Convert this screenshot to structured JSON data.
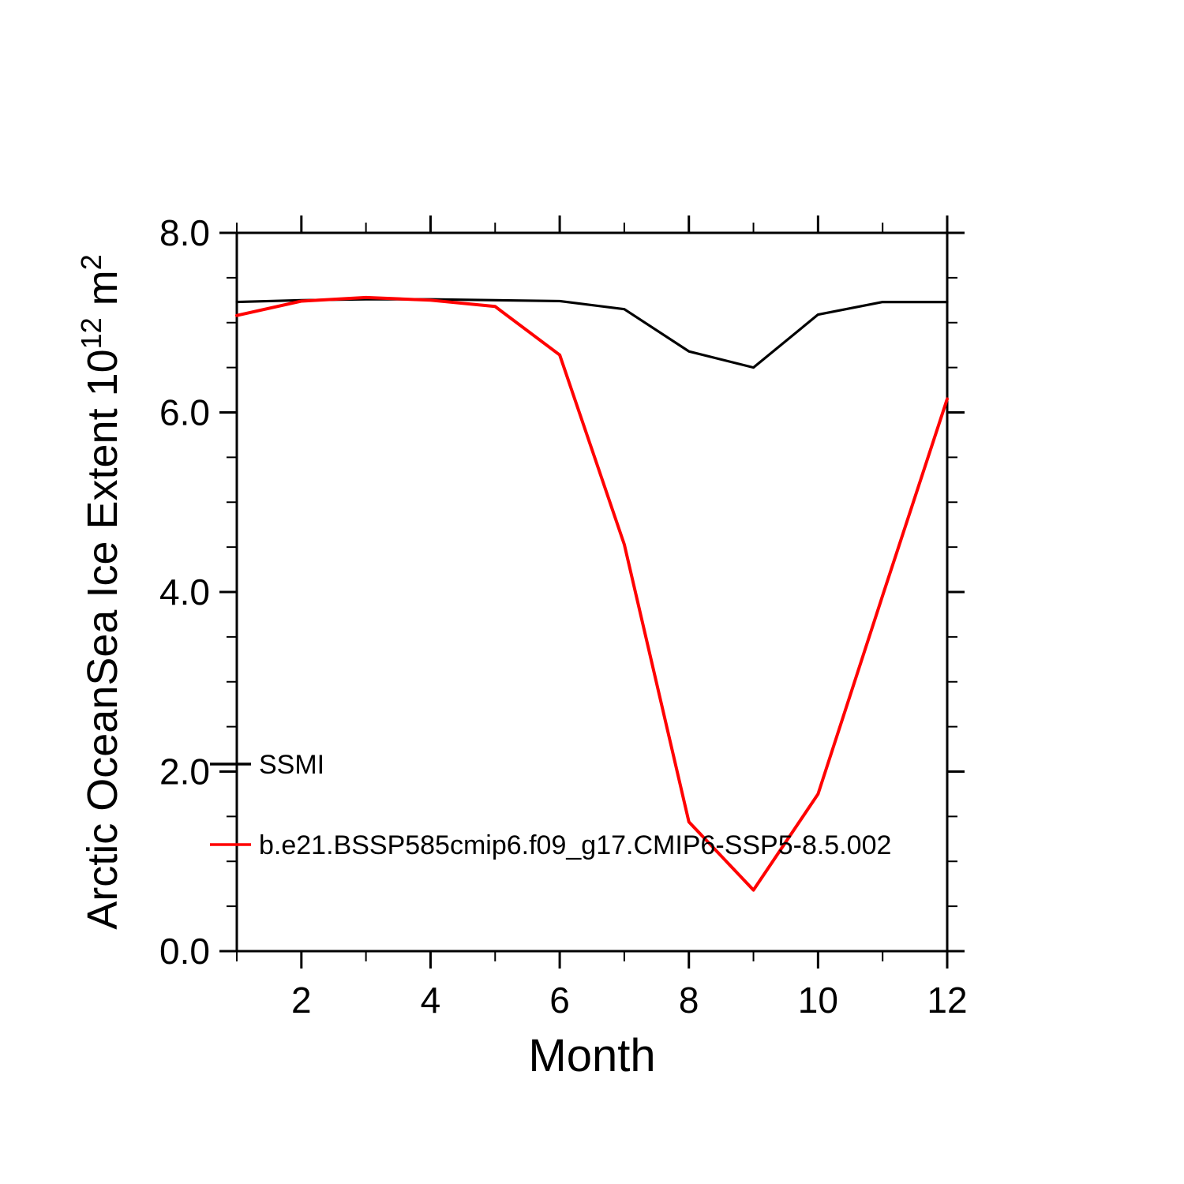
{
  "chart_data": {
    "type": "line",
    "xlabel": "Month",
    "ylabel_parts": [
      {
        "t": "Arctic OceanSea Ice Extent 10"
      },
      {
        "t": "12",
        "sup": true
      },
      {
        "t": " m"
      },
      {
        "t": "2",
        "sup": true
      }
    ],
    "xlim": [
      1,
      12
    ],
    "ylim": [
      0.0,
      8.0
    ],
    "xticks": [
      2,
      4,
      6,
      8,
      10,
      12
    ],
    "xtick_labels": [
      "2",
      "4",
      "6",
      "8",
      "10",
      "12"
    ],
    "x_minor_ticks": [
      1,
      3,
      5,
      7,
      9,
      11
    ],
    "yticks": [
      0.0,
      2.0,
      4.0,
      6.0,
      8.0
    ],
    "ytick_labels": [
      "0.0",
      "2.0",
      "4.0",
      "6.0",
      "8.0"
    ],
    "y_minor_step": 0.5,
    "grid": false,
    "legend_position": "inside-left",
    "x": [
      1,
      2,
      3,
      4,
      5,
      6,
      7,
      8,
      9,
      10,
      11,
      12
    ],
    "series": [
      {
        "name": "SSMI",
        "color": "#000000",
        "values": [
          7.23,
          7.25,
          7.26,
          7.26,
          7.25,
          7.24,
          7.15,
          6.68,
          6.5,
          7.09,
          7.23,
          7.23
        ]
      },
      {
        "name": "b.e21.BSSP585cmip6.f09_g17.CMIP6-SSP5-8.5.002",
        "color": "#ff0000",
        "values": [
          7.08,
          7.24,
          7.28,
          7.25,
          7.18,
          6.64,
          4.53,
          1.44,
          0.68,
          1.75,
          3.96,
          6.15
        ]
      }
    ]
  }
}
